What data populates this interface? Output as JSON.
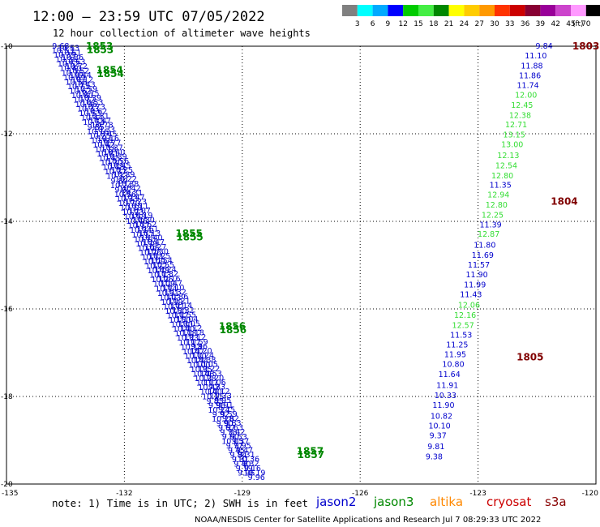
{
  "header": {
    "title": "12:00 – 23:59 UTC 07/05/2022",
    "subtitle": "12 hour collection of altimeter wave heights"
  },
  "color_scale": {
    "labels": [
      "3",
      "6",
      "9",
      "12",
      "15",
      "18",
      "21",
      "24",
      "27",
      "30",
      "33",
      "36",
      "39",
      "42",
      "45",
      "70"
    ],
    "unit": "(ft)",
    "colors": [
      "#808080",
      "#00ffff",
      "#00aaff",
      "#0000ff",
      "#00cc00",
      "#44ee44",
      "#008800",
      "#ffff00",
      "#ffcc00",
      "#ff9900",
      "#ff3300",
      "#cc0000",
      "#880033",
      "#990099",
      "#cc44cc",
      "#ff99ff",
      "#000000"
    ]
  },
  "axes": {
    "lon_labels": [
      "-135",
      "-132",
      "-129",
      "-126",
      "-123",
      "-120"
    ],
    "lon_values": [
      -135,
      -132,
      -129,
      -126,
      -123,
      -120
    ],
    "lat_labels": [
      "-10",
      "-12",
      "-14",
      "-16",
      "-18",
      "-20"
    ],
    "lat_values": [
      -10,
      -12,
      -14,
      -16,
      -18,
      -20
    ]
  },
  "tracks": [
    {
      "start": [
        -133.62,
        -10.0
      ],
      "end": [
        -128.9,
        -19.75
      ],
      "offset": 0.0,
      "values": [
        "9.68",
        "10.53",
        "10.39",
        "10.36",
        "10.52",
        "10.40",
        "10.76",
        "10.89",
        "10.56",
        "10.71",
        "10.62",
        "10.80",
        "10.72",
        "10.96",
        "10.33",
        "10.53",
        "10.44",
        "10.54",
        "9.85",
        "10.16",
        "10.25",
        "10.66",
        "10.42",
        "10.18",
        "10.81",
        "10.45",
        "10.30",
        "10.48",
        "10.37",
        "10.33",
        "9.89",
        "10.24",
        "9.92",
        "10.56",
        "10.33",
        "10.70",
        "10.18",
        "10.23",
        "10.58",
        "10.46",
        "10.17",
        "10.34",
        "10.17",
        "10.10",
        "10.39",
        "10.06",
        "10.26",
        "10.14",
        "10.09",
        "10.22",
        "10.48",
        "10.13",
        "10.26",
        "10.09",
        "10.14",
        "10.31",
        "10.03",
        "10.19",
        "10.71",
        "10.50",
        "10.17",
        "10.50",
        "10.30",
        "10.40",
        "10.18",
        "10.33",
        "10.17",
        "10.14",
        "10.47",
        "10.10",
        "10.44",
        "10.00",
        "10.35",
        "10.46",
        "10.28",
        "10.17",
        "10.47",
        "10.40",
        "10.15",
        "9.85",
        "9.96",
        "10.24",
        "9.92",
        "10.28",
        "9.90",
        "9.67",
        "9.78",
        "9.60",
        "10.05",
        "9.77",
        "9.45",
        "9.84",
        "9.31",
        "9.40",
        "9.19",
        "9.96"
      ]
    },
    {
      "start": [
        -133.42,
        -10.05
      ],
      "end": [
        -128.64,
        -19.85
      ],
      "offset": 0.0,
      "values": [
        "10.53",
        "10.61",
        "10.36",
        "10.63",
        "10.72",
        "10.52",
        "10.44",
        "10.12",
        "10.43",
        "10.59",
        "10.75",
        "10.39",
        "10.53",
        "10.73",
        "10.62",
        "10.31",
        "10.47",
        "10.78",
        "10.33",
        "10.45",
        "10.16",
        "10.77",
        "10.37",
        "10.40",
        "10.39",
        "10.56",
        "10.45",
        "10.25",
        "10.39",
        "10.22",
        "10.38",
        "10.42",
        "10.31",
        "10.47",
        "10.23",
        "10.11",
        "10.07",
        "10.19",
        "10.30",
        "10.62",
        "10.61",
        "10.13",
        "10.40",
        "10.47",
        "10.27",
        "10.30",
        "10.25",
        "10.54",
        "10.55",
        "10.24",
        "10.32",
        "10.16",
        "10.47",
        "10.10",
        "10.32",
        "10.36",
        "10.21",
        "10.14",
        "10.32",
        "10.55",
        "10.04",
        "10.05",
        "10.12",
        "10.18",
        "10.12",
        "10.59",
        "9.96",
        "10.20",
        "10.24",
        "10.38",
        "10.05",
        "10.22",
        "10.53",
        "10.20",
        "10.06",
        "9.83",
        "10.12",
        "10.33",
        "9.95",
        "9.91",
        "9.75",
        "9.59",
        "9.82",
        "9.83",
        "9.63",
        "9.42",
        "9.53",
        "9.37",
        "9.95",
        "9.47",
        "9.31",
        "10.36",
        "9.32",
        "9.16",
        "10.19",
        "9.96"
      ]
    }
  ],
  "east_track": [
    {
      "v": "9.84",
      "lon": -121.1,
      "lat": -10.0
    },
    {
      "v": "11.10",
      "lon": -121.25,
      "lat": -10.22
    },
    {
      "v": "11.88",
      "lon": -121.35,
      "lat": -10.45
    },
    {
      "v": "11.86",
      "lon": -121.4,
      "lat": -10.68
    },
    {
      "v": "11.74",
      "lon": -121.45,
      "lat": -10.9
    },
    {
      "v": "12.00",
      "lon": -121.5,
      "lat": -11.12
    },
    {
      "v": "12.45",
      "lon": -121.6,
      "lat": -11.35
    },
    {
      "v": "12.38",
      "lon": -121.65,
      "lat": -11.58
    },
    {
      "v": "12.71",
      "lon": -121.75,
      "lat": -11.8
    },
    {
      "v": "13.15",
      "lon": -121.8,
      "lat": -12.03
    },
    {
      "v": "13.00",
      "lon": -121.85,
      "lat": -12.25
    },
    {
      "v": "12.13",
      "lon": -121.95,
      "lat": -12.5
    },
    {
      "v": "12.54",
      "lon": -122.0,
      "lat": -12.73
    },
    {
      "v": "12.80",
      "lon": -122.1,
      "lat": -12.96
    },
    {
      "v": "11.35",
      "lon": -122.15,
      "lat": -13.18
    },
    {
      "v": "12.94",
      "lon": -122.2,
      "lat": -13.4
    },
    {
      "v": "12.80",
      "lon": -122.25,
      "lat": -13.63
    },
    {
      "v": "12.25",
      "lon": -122.35,
      "lat": -13.86
    },
    {
      "v": "11.39",
      "lon": -122.4,
      "lat": -14.08
    },
    {
      "v": "12.87",
      "lon": -122.45,
      "lat": -14.3
    },
    {
      "v": "11.80",
      "lon": -122.55,
      "lat": -14.55
    },
    {
      "v": "11.69",
      "lon": -122.6,
      "lat": -14.78
    },
    {
      "v": "11.57",
      "lon": -122.7,
      "lat": -15.0
    },
    {
      "v": "11.90",
      "lon": -122.75,
      "lat": -15.22
    },
    {
      "v": "11.99",
      "lon": -122.8,
      "lat": -15.45
    },
    {
      "v": "11.43",
      "lon": -122.9,
      "lat": -15.68
    },
    {
      "v": "12.06",
      "lon": -122.95,
      "lat": -15.92
    },
    {
      "v": "12.16",
      "lon": -123.05,
      "lat": -16.15
    },
    {
      "v": "12.57",
      "lon": -123.1,
      "lat": -16.38
    },
    {
      "v": "11.53",
      "lon": -123.15,
      "lat": -16.6
    },
    {
      "v": "11.25",
      "lon": -123.25,
      "lat": -16.82
    },
    {
      "v": "11.95",
      "lon": -123.3,
      "lat": -17.05
    },
    {
      "v": "10.80",
      "lon": -123.35,
      "lat": -17.27
    },
    {
      "v": "11.64",
      "lon": -123.45,
      "lat": -17.5
    },
    {
      "v": "11.91",
      "lon": -123.5,
      "lat": -17.75
    },
    {
      "v": "10.33",
      "lon": -123.55,
      "lat": -17.98
    },
    {
      "v": "11.90",
      "lon": -123.6,
      "lat": -18.2
    },
    {
      "v": "10.82",
      "lon": -123.65,
      "lat": -18.45
    },
    {
      "v": "10.10",
      "lon": -123.7,
      "lat": -18.68
    },
    {
      "v": "9.37",
      "lon": -123.8,
      "lat": -18.9
    },
    {
      "v": "9.81",
      "lon": -123.85,
      "lat": -19.15
    },
    {
      "v": "9.38",
      "lon": -123.9,
      "lat": -19.38
    }
  ],
  "time_labels": [
    {
      "text": "1853",
      "lon": -132.98,
      "lat": -10.0,
      "color": "#008800"
    },
    {
      "text": "1853",
      "lon": -132.96,
      "lat": -10.08,
      "color": "#008800"
    },
    {
      "text": "1854",
      "lon": -132.72,
      "lat": -10.55,
      "color": "#008800"
    },
    {
      "text": "1854",
      "lon": -132.7,
      "lat": -10.63,
      "color": "#008800"
    },
    {
      "text": "1855",
      "lon": -130.7,
      "lat": -14.28,
      "color": "#008800"
    },
    {
      "text": "1855",
      "lon": -130.68,
      "lat": -14.36,
      "color": "#008800"
    },
    {
      "text": "1856",
      "lon": -129.6,
      "lat": -16.4,
      "color": "#008800"
    },
    {
      "text": "1856",
      "lon": -129.58,
      "lat": -16.48,
      "color": "#008800"
    },
    {
      "text": "1857",
      "lon": -127.62,
      "lat": -19.25,
      "color": "#008800"
    },
    {
      "text": "1857",
      "lon": -127.6,
      "lat": -19.33,
      "color": "#008800"
    },
    {
      "text": "1803",
      "lon": -120.6,
      "lat": -10.0,
      "color": "#800000"
    },
    {
      "text": "1804",
      "lon": -121.15,
      "lat": -13.55,
      "color": "#800000"
    },
    {
      "text": "1805",
      "lon": -122.02,
      "lat": -17.1,
      "color": "#800000"
    }
  ],
  "footer": {
    "note": "note: 1) Time is in UTC; 2) SWH is in feet",
    "satellites": [
      {
        "name": "jason2",
        "color": "#0000cc"
      },
      {
        "name": "jason3",
        "color": "#008800"
      },
      {
        "name": "altika",
        "color": "#ff8800"
      },
      {
        "name": "cryosat",
        "color": "#cc0000"
      },
      {
        "name": "s3a",
        "color": "#880000"
      }
    ],
    "credit": "NOAA/NESDIS Center for Satellite Applications and Research   Jul  7 08:29:33 UTC 2022"
  }
}
